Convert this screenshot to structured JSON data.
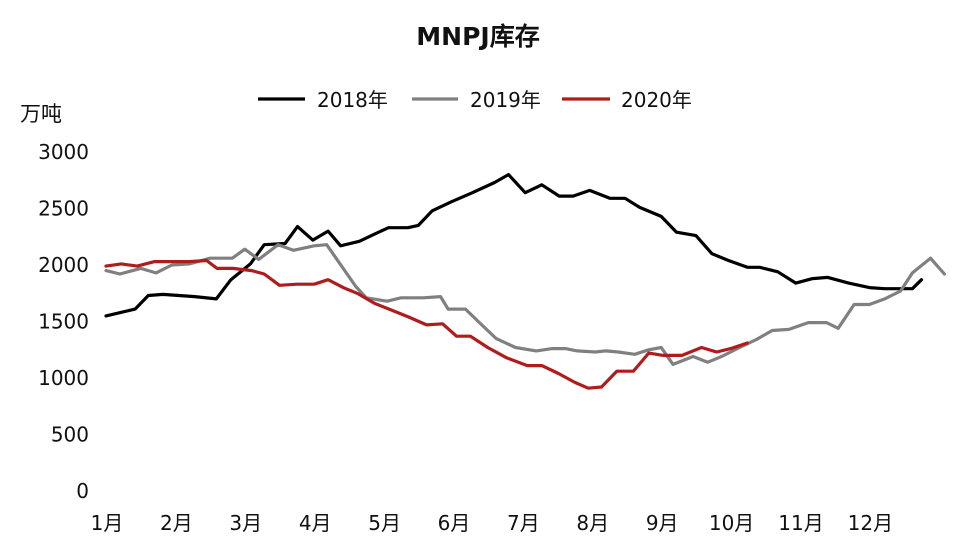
{
  "chart_data": {
    "type": "line",
    "title": "MNPJ库存",
    "ylabel": "万吨",
    "xlabel": "",
    "ylim": [
      0,
      3000
    ],
    "yticks": [
      0,
      500,
      1000,
      1500,
      2000,
      2500,
      3000
    ],
    "grid": false,
    "legend_position": "top",
    "xlim": [
      0,
      12
    ],
    "x_ticks": [
      {
        "x": 0,
        "label": "1月"
      },
      {
        "x": 1,
        "label": "2月"
      },
      {
        "x": 2,
        "label": "3月"
      },
      {
        "x": 3,
        "label": "4月"
      },
      {
        "x": 4,
        "label": "5月"
      },
      {
        "x": 5,
        "label": "6月"
      },
      {
        "x": 6,
        "label": "7月"
      },
      {
        "x": 7,
        "label": "8月"
      },
      {
        "x": 8,
        "label": "9月"
      },
      {
        "x": 9,
        "label": "10月"
      },
      {
        "x": 10,
        "label": "11月"
      },
      {
        "x": 11,
        "label": "12月"
      }
    ],
    "series": [
      {
        "name": "2018年",
        "color": "#000000",
        "points": [
          [
            0.0,
            1550
          ],
          [
            0.42,
            1610
          ],
          [
            0.61,
            1730
          ],
          [
            0.82,
            1740
          ],
          [
            1.28,
            1720
          ],
          [
            1.59,
            1700
          ],
          [
            1.8,
            1870
          ],
          [
            2.08,
            2010
          ],
          [
            2.28,
            2180
          ],
          [
            2.58,
            2190
          ],
          [
            2.76,
            2340
          ],
          [
            2.98,
            2220
          ],
          [
            3.2,
            2300
          ],
          [
            3.38,
            2170
          ],
          [
            3.65,
            2210
          ],
          [
            3.89,
            2280
          ],
          [
            4.07,
            2330
          ],
          [
            4.35,
            2330
          ],
          [
            4.5,
            2350
          ],
          [
            4.7,
            2480
          ],
          [
            4.98,
            2560
          ],
          [
            5.28,
            2640
          ],
          [
            5.6,
            2730
          ],
          [
            5.8,
            2800
          ],
          [
            6.04,
            2640
          ],
          [
            6.28,
            2710
          ],
          [
            6.53,
            2610
          ],
          [
            6.73,
            2610
          ],
          [
            6.97,
            2660
          ],
          [
            7.26,
            2590
          ],
          [
            7.48,
            2590
          ],
          [
            7.69,
            2510
          ],
          [
            8.0,
            2430
          ],
          [
            8.22,
            2290
          ],
          [
            8.5,
            2260
          ],
          [
            8.73,
            2100
          ],
          [
            8.97,
            2040
          ],
          [
            9.24,
            1980
          ],
          [
            9.42,
            1980
          ],
          [
            9.68,
            1940
          ],
          [
            9.94,
            1840
          ],
          [
            10.18,
            1880
          ],
          [
            10.4,
            1890
          ],
          [
            10.7,
            1840
          ],
          [
            11.0,
            1800
          ],
          [
            11.22,
            1790
          ],
          [
            11.4,
            1790
          ],
          [
            11.62,
            1790
          ],
          [
            11.75,
            1870
          ]
        ]
      },
      {
        "name": "2019年",
        "color": "#808080",
        "points": [
          [
            0.0,
            1950
          ],
          [
            0.2,
            1920
          ],
          [
            0.5,
            1970
          ],
          [
            0.72,
            1930
          ],
          [
            0.95,
            2000
          ],
          [
            1.2,
            2010
          ],
          [
            1.5,
            2060
          ],
          [
            1.82,
            2060
          ],
          [
            2.0,
            2140
          ],
          [
            2.2,
            2050
          ],
          [
            2.48,
            2180
          ],
          [
            2.7,
            2130
          ],
          [
            3.0,
            2170
          ],
          [
            3.18,
            2180
          ],
          [
            3.36,
            2020
          ],
          [
            3.6,
            1810
          ],
          [
            3.75,
            1710
          ],
          [
            4.05,
            1680
          ],
          [
            4.25,
            1710
          ],
          [
            4.57,
            1710
          ],
          [
            4.82,
            1720
          ],
          [
            4.93,
            1610
          ],
          [
            5.18,
            1610
          ],
          [
            5.38,
            1490
          ],
          [
            5.62,
            1350
          ],
          [
            5.9,
            1270
          ],
          [
            6.2,
            1240
          ],
          [
            6.43,
            1260
          ],
          [
            6.62,
            1260
          ],
          [
            6.79,
            1240
          ],
          [
            7.05,
            1230
          ],
          [
            7.2,
            1240
          ],
          [
            7.38,
            1230
          ],
          [
            7.62,
            1210
          ],
          [
            7.82,
            1250
          ],
          [
            8.0,
            1270
          ],
          [
            8.17,
            1120
          ],
          [
            8.46,
            1190
          ],
          [
            8.67,
            1140
          ],
          [
            8.87,
            1190
          ],
          [
            9.13,
            1270
          ],
          [
            9.37,
            1340
          ],
          [
            9.6,
            1420
          ],
          [
            9.84,
            1430
          ],
          [
            10.12,
            1490
          ],
          [
            10.38,
            1490
          ],
          [
            10.55,
            1440
          ],
          [
            10.78,
            1650
          ],
          [
            11.0,
            1650
          ],
          [
            11.22,
            1700
          ],
          [
            11.45,
            1770
          ],
          [
            11.62,
            1930
          ],
          [
            11.88,
            2060
          ],
          [
            12.08,
            1920
          ]
        ]
      },
      {
        "name": "2020年",
        "color": "#b01c1c",
        "points": [
          [
            0.0,
            1990
          ],
          [
            0.22,
            2010
          ],
          [
            0.45,
            1990
          ],
          [
            0.7,
            2030
          ],
          [
            0.92,
            2030
          ],
          [
            1.2,
            2030
          ],
          [
            1.45,
            2040
          ],
          [
            1.6,
            1970
          ],
          [
            1.83,
            1970
          ],
          [
            2.1,
            1950
          ],
          [
            2.28,
            1920
          ],
          [
            2.5,
            1820
          ],
          [
            2.75,
            1830
          ],
          [
            3.0,
            1830
          ],
          [
            3.2,
            1870
          ],
          [
            3.42,
            1800
          ],
          [
            3.62,
            1750
          ],
          [
            3.87,
            1660
          ],
          [
            4.12,
            1600
          ],
          [
            4.36,
            1540
          ],
          [
            4.62,
            1470
          ],
          [
            4.85,
            1480
          ],
          [
            5.05,
            1370
          ],
          [
            5.25,
            1370
          ],
          [
            5.5,
            1270
          ],
          [
            5.77,
            1180
          ],
          [
            6.07,
            1110
          ],
          [
            6.28,
            1110
          ],
          [
            6.52,
            1040
          ],
          [
            6.76,
            960
          ],
          [
            6.95,
            910
          ],
          [
            7.14,
            920
          ],
          [
            7.36,
            1060
          ],
          [
            7.6,
            1060
          ],
          [
            7.82,
            1220
          ],
          [
            8.03,
            1200
          ],
          [
            8.3,
            1200
          ],
          [
            8.58,
            1270
          ],
          [
            8.8,
            1230
          ],
          [
            9.0,
            1260
          ],
          [
            9.24,
            1310
          ]
        ]
      }
    ]
  }
}
